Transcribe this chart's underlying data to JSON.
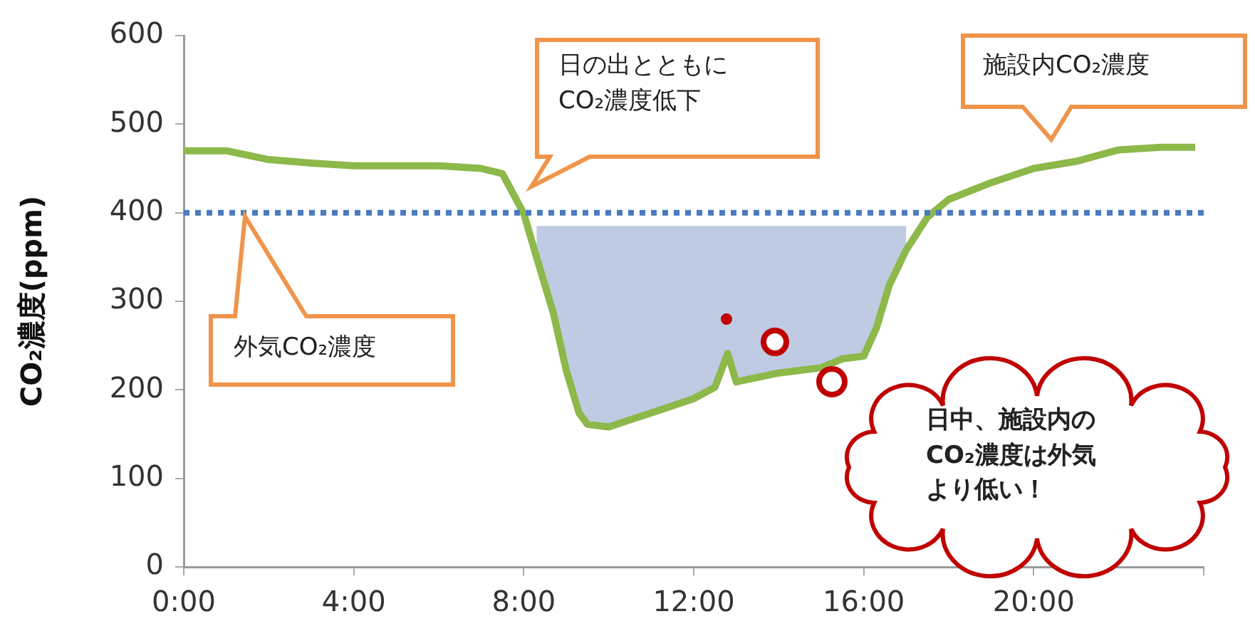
{
  "chart_data": {
    "type": "line",
    "ylabel": "CO₂濃度(ppm)",
    "xlim": [
      0,
      24
    ],
    "ylim": [
      0,
      600
    ],
    "xticks": [
      {
        "value": 0,
        "label": "0:00"
      },
      {
        "value": 4,
        "label": "4:00"
      },
      {
        "value": 8,
        "label": "8:00"
      },
      {
        "value": 12,
        "label": "12:00"
      },
      {
        "value": 16,
        "label": "16:00"
      },
      {
        "value": 20,
        "label": "20:00"
      },
      {
        "value": 24,
        "label": null
      }
    ],
    "yticks": [
      0,
      100,
      200,
      300,
      400,
      500,
      600
    ],
    "grid": false,
    "legend": false,
    "marker": "none",
    "line_style": "solid",
    "x": [
      0,
      1,
      2,
      3,
      4,
      5,
      6,
      7,
      7.5,
      8,
      8.3,
      8.7,
      9,
      9.3,
      9.5,
      10,
      10.5,
      11,
      11.5,
      12,
      12.5,
      12.8,
      13,
      13.5,
      14,
      14.5,
      15,
      15.5,
      16,
      16.3,
      16.6,
      17,
      17.5,
      18,
      19,
      20,
      21,
      22,
      23,
      23.8
    ],
    "series": [
      {
        "color": "#8db84a",
        "values": [
          470,
          470,
          460,
          456,
          453,
          453,
          453,
          450,
          444,
          399,
          350,
          286,
          222,
          174,
          161,
          158,
          166,
          174,
          182,
          190,
          203,
          241,
          209,
          214,
          219,
          222,
          225,
          235,
          238,
          270,
          318,
          358,
          395,
          415,
          434,
          450,
          458,
          471,
          474,
          474
        ],
        "lower": [
          null,
          null,
          null,
          null,
          null,
          null,
          null,
          null,
          null,
          null,
          350,
          286,
          222,
          174,
          161,
          158,
          166,
          174,
          182,
          190,
          203,
          241,
          209,
          214,
          219,
          222,
          225,
          235,
          238,
          270,
          318,
          358,
          null,
          null,
          null,
          null,
          null,
          null,
          null,
          null
        ],
        "upper": [
          null,
          null,
          null,
          null,
          null,
          null,
          null,
          null,
          null,
          null,
          385,
          385,
          385,
          385,
          385,
          385,
          385,
          385,
          385,
          385,
          385,
          385,
          385,
          385,
          385,
          385,
          385,
          385,
          385,
          385,
          385,
          385,
          null,
          null,
          null,
          null,
          null,
          null,
          null,
          null
        ]
      }
    ],
    "ref_lines": [
      {
        "axis": "y",
        "value": 400,
        "color": "#4a7bbf",
        "line_style": "dotted"
      }
    ],
    "annotations": [
      "日の出とともにCO₂濃度低下",
      "施設内CO₂濃度",
      "外気CO₂濃度",
      "日中、施設内のCO₂濃度は外気より低い！"
    ]
  }
}
